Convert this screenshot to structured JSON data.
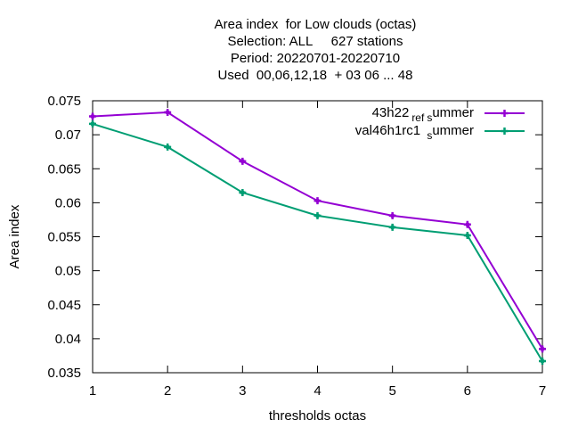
{
  "chart_data": {
    "type": "line",
    "title_lines": [
      "Area index  for Low clouds (octas)",
      "Selection: ALL     627 stations",
      "Period: 20220701-20220710",
      "Used  00,06,12,18  + 03 06 ... 48"
    ],
    "xlabel": "thresholds octas",
    "ylabel": "Area index",
    "x": [
      1,
      2,
      3,
      4,
      5,
      6,
      7
    ],
    "xlim": [
      1,
      7
    ],
    "ylim": [
      0.035,
      0.075
    ],
    "yticks": [
      0.035,
      0.04,
      0.045,
      0.05,
      0.055,
      0.06,
      0.065,
      0.07,
      0.075
    ],
    "ytick_labels": [
      "0.035",
      "0.04",
      "0.045",
      "0.05",
      "0.055",
      "0.06",
      "0.065",
      "0.07",
      "0.075"
    ],
    "xtick_labels": [
      "1",
      "2",
      "3",
      "4",
      "5",
      "6",
      "7"
    ],
    "legend_position": "top-right",
    "grid": false,
    "series": [
      {
        "legend": {
          "main": "43h22",
          "sub1": "ref",
          "mid": "",
          "sub2": "s",
          "tail": "ummer"
        },
        "color": "#9400d3",
        "values": [
          0.0727,
          0.0733,
          0.0661,
          0.0603,
          0.0581,
          0.0568,
          0.0385
        ]
      },
      {
        "legend": {
          "main": "val46h1rc1",
          "sub1": "",
          "mid": " ",
          "sub2": "s",
          "tail": "ummer"
        },
        "color": "#009e73",
        "values": [
          0.0716,
          0.0682,
          0.0615,
          0.0581,
          0.0564,
          0.0552,
          0.0367
        ]
      }
    ]
  }
}
